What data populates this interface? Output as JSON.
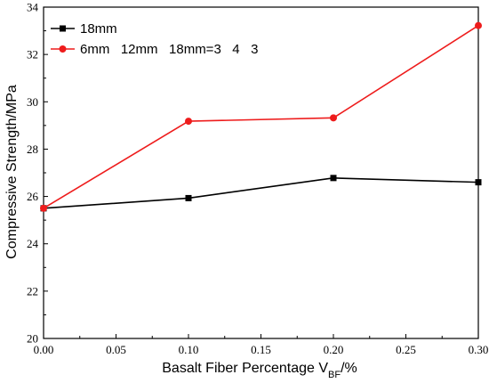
{
  "chart_data": {
    "type": "line",
    "x": [
      0.0,
      0.1,
      0.2,
      0.3
    ],
    "series": [
      {
        "name": "18mm",
        "values": [
          25.5,
          25.93,
          26.78,
          26.6
        ],
        "color": "#000000",
        "marker": "square"
      },
      {
        "name": "6mm   12mm   18mm=3   4   3",
        "values": [
          25.5,
          29.18,
          29.32,
          33.22
        ],
        "color": "#ee1c1c",
        "marker": "circle"
      }
    ],
    "xlabel_main": "Basalt Fiber Percentage  V",
    "xlabel_sub": "BF",
    "xlabel_tail": "/%",
    "ylabel": "Compressive Strength/MPa",
    "xlim": [
      0.0,
      0.3
    ],
    "ylim": [
      20,
      34
    ],
    "xticks": [
      "0.00",
      "0.05",
      "0.10",
      "0.15",
      "0.20",
      "0.25",
      "0.30"
    ],
    "yticks": [
      "20",
      "22",
      "24",
      "26",
      "28",
      "30",
      "32",
      "34"
    ],
    "grid": false,
    "legend_position": "top-left"
  }
}
